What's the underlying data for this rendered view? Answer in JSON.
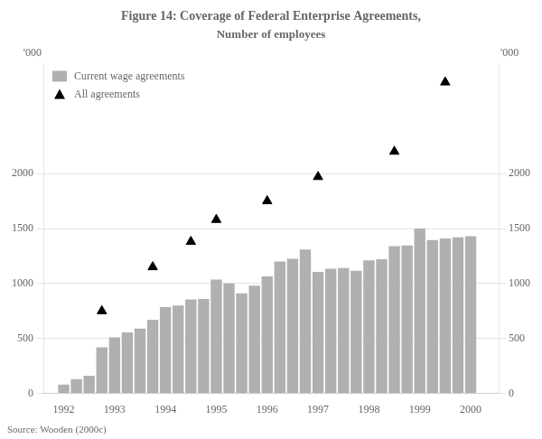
{
  "chart_data": {
    "type": "bar",
    "title": "Figure 14: Coverage of Federal Enterprise Agreements,",
    "subtitle": "Number of employees",
    "ylabel": "'000",
    "y2label": "'000",
    "annotations": [
      "Source: Wooden (2000c)"
    ],
    "series": [
      {
        "name": "Current wage agreements",
        "type": "bar",
        "color": "#b0b0b0",
        "x": [
          1992.0,
          1992.25,
          1992.5,
          1992.75,
          1993.0,
          1993.25,
          1993.5,
          1993.75,
          1994.0,
          1994.25,
          1994.5,
          1994.75,
          1995.0,
          1995.25,
          1995.5,
          1995.75,
          1996.0,
          1996.25,
          1996.5,
          1996.75,
          1997.0,
          1997.25,
          1997.5,
          1997.75,
          1998.0,
          1998.25,
          1998.5,
          1998.75,
          1999.0,
          1999.25,
          1999.5,
          1999.75,
          2000.0
        ],
        "values": [
          80,
          130,
          160,
          420,
          510,
          555,
          590,
          670,
          785,
          800,
          855,
          860,
          1035,
          1000,
          910,
          980,
          1065,
          1200,
          1225,
          1310,
          1105,
          1135,
          1140,
          1115,
          1210,
          1220,
          1340,
          1345,
          1500,
          1395,
          1410,
          1420,
          1430
        ]
      },
      {
        "name": "All agreements",
        "type": "scatter",
        "marker": "triangle",
        "color": "#000000",
        "x": [
          1992.75,
          1993.75,
          1994.5,
          1995.0,
          1996.0,
          1997.0,
          1998.5,
          1999.5
        ],
        "values": [
          750,
          1150,
          1380,
          1580,
          1750,
          1970,
          2200,
          2830
        ]
      }
    ],
    "xlim": [
      1991.6,
      2000.55
    ],
    "xticks": [
      1992,
      1993,
      1994,
      1995,
      1996,
      1997,
      1998,
      1999,
      2000
    ],
    "ylim": [
      0,
      3000
    ],
    "yticks": [
      0,
      500,
      1000,
      1500,
      2000
    ],
    "y2lim": [
      0,
      3000
    ],
    "y2ticks": [
      0,
      500,
      1000,
      1500,
      2000
    ],
    "grid": true,
    "legend": "upper left"
  }
}
